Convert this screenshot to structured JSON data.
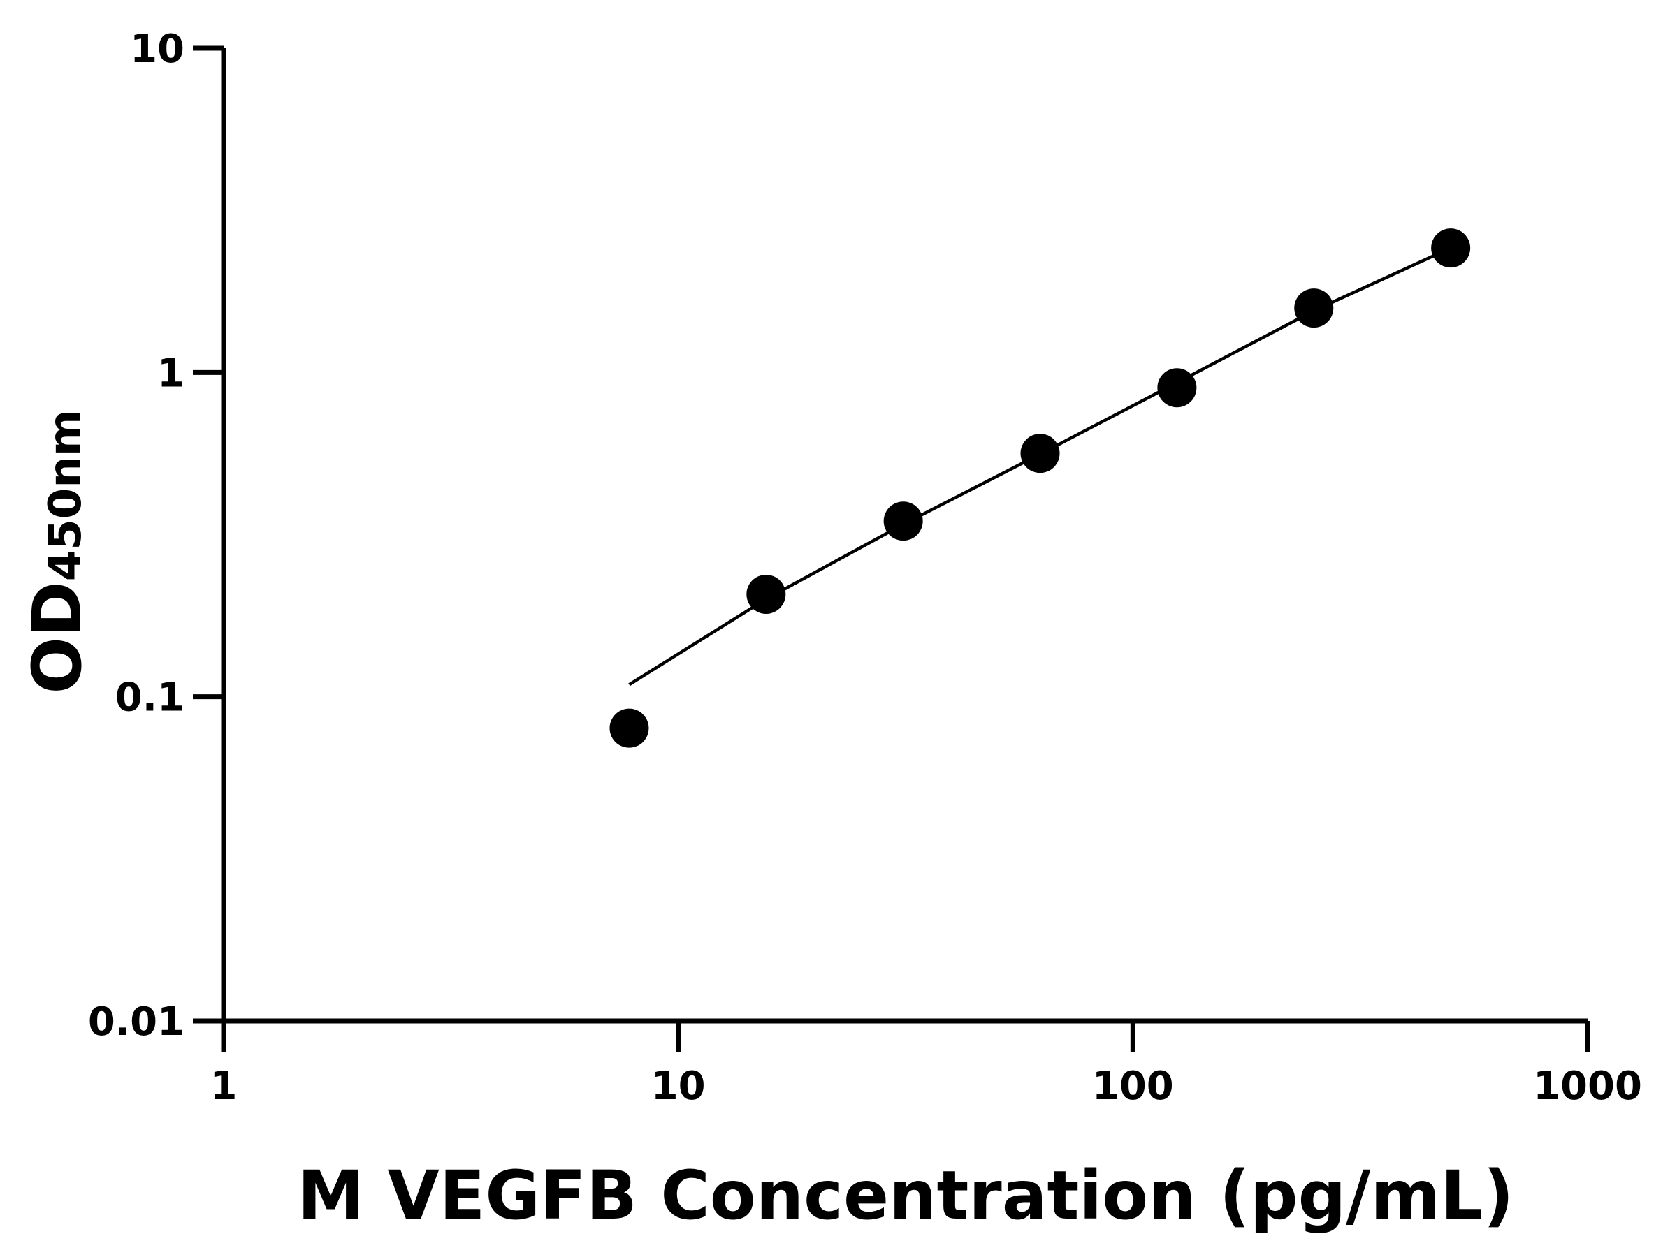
{
  "chart_data": {
    "type": "scatter",
    "title": "",
    "xlabel": "M VEGFB Concentration (pg/mL)",
    "ylabel_main": "OD",
    "ylabel_sub": "450nm",
    "xscale": "log",
    "yscale": "log",
    "xlim": [
      1,
      1000
    ],
    "ylim": [
      0.01,
      10
    ],
    "xticks": [
      1,
      10,
      100,
      1000
    ],
    "xtick_labels": [
      "1",
      "10",
      "100",
      "1000"
    ],
    "yticks": [
      0.01,
      0.1,
      1,
      10
    ],
    "ytick_labels": [
      "0.01",
      "0.1",
      "1",
      "10"
    ],
    "grid": false,
    "points": {
      "x": [
        7.8,
        15.6,
        31.25,
        62.5,
        125,
        250,
        500
      ],
      "y": [
        0.08,
        0.207,
        0.348,
        0.563,
        0.897,
        1.58,
        2.42
      ]
    },
    "fit_line": {
      "x": [
        7.8,
        15.6,
        31.25,
        62.5,
        125,
        250,
        500
      ],
      "y": [
        0.109,
        0.2,
        0.34,
        0.56,
        0.93,
        1.55,
        2.42
      ]
    },
    "colors": {
      "points": "#000000",
      "line": "#000000",
      "axes": "#000000"
    }
  }
}
